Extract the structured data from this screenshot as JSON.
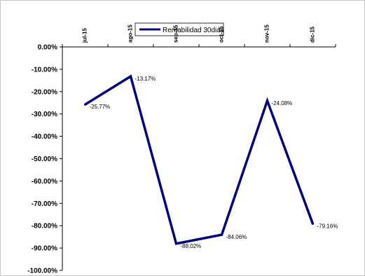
{
  "chart_data": {
    "type": "line",
    "categories": [
      "jul-15",
      "ago-15",
      "sep-15",
      "oct-15",
      "nov-15",
      "dic-15"
    ],
    "series": [
      {
        "name": "Rentabilidad 30dias",
        "values": [
          -25.77,
          -13.17,
          -88.02,
          -84.06,
          -24.08,
          -79.16
        ],
        "labels": [
          "-25.77%",
          "-13.17%",
          "-88.02%",
          "-84.06%",
          "-24.08%",
          "-79.16%"
        ],
        "color": "#000080"
      }
    ],
    "ylim": [
      -100,
      0
    ],
    "ytick_values": [
      0,
      -10,
      -20,
      -30,
      -40,
      -50,
      -60,
      -70,
      -80,
      -90,
      -100
    ],
    "ytick_labels": [
      "0.00%",
      "-10.00%",
      "-20.00%",
      "-30.00%",
      "-40.00%",
      "-50.00%",
      "-60.00%",
      "-70.00%",
      "-80.00%",
      "-90.00%",
      "-100.00%"
    ],
    "x_axis_position": "top",
    "x_tick_rotation": "vertical",
    "grid": false,
    "legend_position": "top-center"
  }
}
